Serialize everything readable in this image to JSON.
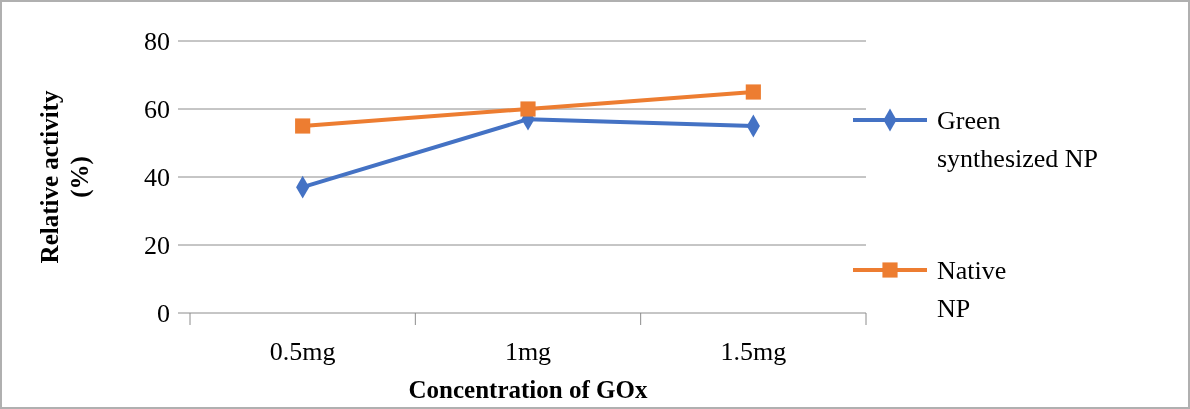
{
  "chart_data": {
    "type": "line",
    "xlabel": "Concentration of GOx",
    "ylabel": "Relative activity (%)",
    "categories": [
      "0.5mg",
      "1mg",
      "1.5mg"
    ],
    "series": [
      {
        "name": "Green synthesized NP",
        "color": "#4472c4",
        "values": [
          37,
          57,
          55
        ],
        "marker": "diamond"
      },
      {
        "name": "Native NP",
        "color": "#ed7d31",
        "values": [
          55,
          60,
          65
        ],
        "marker": "square"
      }
    ],
    "ylim": [
      0,
      80
    ],
    "yticks": [
      0,
      20,
      40,
      60,
      80
    ],
    "grid": "y",
    "legend": "right"
  }
}
